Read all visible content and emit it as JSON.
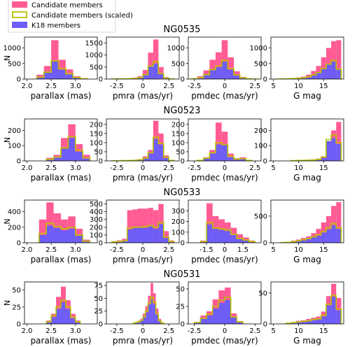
{
  "legend": {
    "placement": "top-left",
    "entries": [
      {
        "key": "candidates",
        "label": "Candidate members"
      },
      {
        "key": "scaled",
        "label": "Candidate members (scaled)"
      },
      {
        "key": "k18",
        "label": "K18 members"
      }
    ]
  },
  "colors": {
    "candidates": "#ff5b94",
    "scaled": "#b8c400",
    "k18": "#6e5df7"
  },
  "ylabel": "N",
  "columns": [
    {
      "key": "parallax",
      "xlabel": "parallax (mas)"
    },
    {
      "key": "pmra",
      "xlabel": "pmra (mas/yr)"
    },
    {
      "key": "pmdec",
      "xlabel": "pmdec (mas/yr)"
    },
    {
      "key": "gmag",
      "xlabel": "G mag"
    }
  ],
  "chart_data": [
    {
      "cluster": "NG0535",
      "type": "bar",
      "panels": [
        {
          "xlim": [
            1.95,
            3.45
          ],
          "xticks": [
            2.0,
            2.5,
            3.0
          ],
          "ylim": [
            0,
            1350
          ],
          "yticks": [
            0,
            500,
            1000
          ],
          "bin_edges": [
            2.2,
            2.35,
            2.5,
            2.65,
            2.8,
            2.95,
            3.1,
            3.25
          ],
          "candidates": [
            140,
            420,
            1250,
            620,
            310,
            90,
            20
          ],
          "scaled": [
            60,
            220,
            590,
            340,
            170,
            50,
            10
          ],
          "k18": [
            50,
            200,
            560,
            300,
            150,
            40,
            8
          ]
        },
        {
          "xlim": [
            -3.5,
            3.5
          ],
          "xticks": [
            -2.5,
            0.0,
            2.5
          ],
          "ylim": [
            0,
            1750
          ],
          "yticks": [
            0,
            500,
            1000,
            1500
          ],
          "bin_edges": [
            -3.0,
            -2.5,
            -2.0,
            -1.5,
            -1.0,
            -0.5,
            0.0,
            0.5,
            1.0,
            1.5,
            2.0,
            2.5,
            3.0
          ],
          "candidates": [
            10,
            15,
            20,
            30,
            60,
            120,
            380,
            1100,
            1650,
            500,
            80,
            20
          ],
          "scaled": [
            5,
            8,
            10,
            15,
            25,
            60,
            180,
            540,
            720,
            230,
            40,
            10
          ],
          "k18": [
            3,
            5,
            8,
            12,
            20,
            50,
            160,
            520,
            640,
            210,
            30,
            6
          ]
        },
        {
          "xlim": [
            -3.0,
            3.0
          ],
          "xticks": [
            -2.5,
            0.0,
            2.5
          ],
          "ylim": [
            0,
            1350
          ],
          "yticks": [
            0,
            500,
            1000
          ],
          "bin_edges": [
            -2.75,
            -2.25,
            -1.75,
            -1.25,
            -0.75,
            -0.25,
            0.25,
            0.75,
            1.25,
            1.75,
            2.25,
            2.75
          ],
          "candidates": [
            20,
            90,
            280,
            620,
            860,
            1250,
            700,
            250,
            70,
            20,
            5
          ],
          "scaled": [
            10,
            40,
            140,
            300,
            420,
            600,
            340,
            130,
            40,
            10,
            3
          ],
          "k18": [
            8,
            35,
            120,
            280,
            380,
            560,
            300,
            110,
            30,
            8,
            2
          ]
        },
        {
          "xlim": [
            4.5,
            19.0
          ],
          "xticks": [
            5,
            10,
            15
          ],
          "ylim": [
            0,
            1350
          ],
          "yticks": [
            0,
            500,
            1000
          ],
          "bin_edges": [
            5.5,
            6.5,
            7.5,
            8.5,
            9.5,
            10.5,
            11.5,
            12.5,
            13.5,
            14.5,
            15.5,
            16.5,
            17.5,
            18.5
          ],
          "candidates": [
            5,
            10,
            20,
            30,
            50,
            80,
            140,
            260,
            420,
            700,
            1000,
            1220,
            1250
          ],
          "scaled": [
            3,
            5,
            10,
            15,
            25,
            40,
            70,
            130,
            210,
            340,
            480,
            600,
            320
          ],
          "k18": [
            2,
            4,
            8,
            12,
            20,
            35,
            60,
            110,
            190,
            320,
            460,
            560,
            300
          ]
        }
      ]
    },
    {
      "cluster": "NG0523",
      "type": "bar",
      "panels": [
        {
          "xlim": [
            1.95,
            3.45
          ],
          "xticks": [
            2.0,
            2.5,
            3.0
          ],
          "ylim": [
            0,
            275
          ],
          "yticks": [
            0,
            100,
            200
          ],
          "bin_edges": [
            2.4,
            2.55,
            2.7,
            2.85,
            3.0,
            3.15,
            3.3
          ],
          "candidates": [
            20,
            40,
            150,
            240,
            110,
            40
          ],
          "scaled": [
            10,
            25,
            85,
            160,
            70,
            20
          ],
          "k18": [
            8,
            22,
            80,
            150,
            60,
            15
          ]
        },
        {
          "xlim": [
            -3.5,
            3.5
          ],
          "xticks": [
            -2.5,
            0.0,
            2.5
          ],
          "ylim": [
            0,
            230
          ],
          "yticks": [
            0,
            50,
            100,
            150,
            200
          ],
          "bin_edges": [
            -3.0,
            -2.5,
            -2.0,
            -1.5,
            -1.0,
            -0.5,
            0.0,
            0.5,
            1.0,
            1.5,
            2.0,
            2.5,
            3.0
          ],
          "candidates": [
            2,
            2,
            3,
            4,
            6,
            10,
            25,
            60,
            220,
            150,
            30,
            5
          ],
          "scaled": [
            1,
            1,
            2,
            2,
            3,
            6,
            15,
            45,
            130,
            95,
            20,
            3
          ],
          "k18": [
            0,
            1,
            1,
            2,
            3,
            5,
            12,
            40,
            120,
            90,
            15,
            2
          ]
        },
        {
          "xlim": [
            -3.0,
            3.0
          ],
          "xticks": [
            -2.5,
            0.0,
            2.5
          ],
          "ylim": [
            0,
            230
          ],
          "yticks": [
            0,
            50,
            100,
            150,
            200
          ],
          "bin_edges": [
            -2.25,
            -1.75,
            -1.25,
            -0.75,
            -0.25,
            0.25,
            0.75,
            1.25,
            1.75,
            2.25
          ],
          "candidates": [
            5,
            20,
            60,
            210,
            160,
            40,
            15,
            20,
            5
          ],
          "scaled": [
            3,
            15,
            45,
            100,
            90,
            25,
            10,
            12,
            3
          ],
          "k18": [
            2,
            12,
            40,
            90,
            85,
            20,
            8,
            10,
            2
          ]
        },
        {
          "xlim": [
            4.5,
            19.0
          ],
          "xticks": [
            5,
            10,
            15
          ],
          "ylim": [
            0,
            275
          ],
          "yticks": [
            0,
            100,
            200
          ],
          "bin_edges": [
            8.5,
            9.5,
            10.5,
            11.5,
            12.5,
            13.5,
            14.5,
            15.5,
            16.5,
            17.5,
            18.5
          ],
          "candidates": [
            3,
            5,
            6,
            8,
            10,
            15,
            30,
            60,
            200,
            255
          ],
          "scaled": [
            2,
            3,
            4,
            5,
            6,
            10,
            25,
            140,
            170,
            120
          ],
          "k18": [
            1,
            2,
            3,
            4,
            5,
            8,
            20,
            130,
            150,
            110
          ]
        }
      ]
    },
    {
      "cluster": "NG0533",
      "type": "bar",
      "panels": [
        {
          "xlim": [
            1.95,
            3.45
          ],
          "xticks": [
            2.0,
            2.5,
            3.0
          ],
          "ylim": [
            0,
            550
          ],
          "yticks": [
            0,
            200,
            400
          ],
          "bin_edges": [
            2.25,
            2.4,
            2.55,
            2.7,
            2.85,
            3.0,
            3.15,
            3.3
          ],
          "candidates": [
            300,
            520,
            380,
            300,
            340,
            180,
            40
          ],
          "scaled": [
            120,
            250,
            210,
            180,
            200,
            100,
            20
          ],
          "k18": [
            100,
            220,
            190,
            160,
            180,
            90,
            15
          ]
        },
        {
          "xlim": [
            -3.5,
            3.5
          ],
          "xticks": [
            -2.5,
            0.0,
            2.5
          ],
          "ylim": [
            0,
            550
          ],
          "yticks": [
            0,
            100,
            200,
            300,
            400,
            500
          ],
          "bin_edges": [
            -3.0,
            -2.5,
            -2.0,
            -1.5,
            -1.0,
            -0.5,
            0.0,
            0.5,
            1.0,
            1.5,
            2.0,
            2.5,
            3.0
          ],
          "candidates": [
            20,
            30,
            50,
            420,
            430,
            440,
            440,
            450,
            420,
            500,
            150,
            30
          ],
          "scaled": [
            10,
            15,
            25,
            190,
            200,
            200,
            210,
            220,
            200,
            260,
            70,
            15
          ],
          "k18": [
            8,
            12,
            20,
            170,
            190,
            200,
            190,
            210,
            180,
            240,
            60,
            10
          ]
        },
        {
          "xlim": [
            -3.0,
            3.0
          ],
          "xticks": [
            -1.5,
            0.0,
            1.5
          ],
          "ylim": [
            0,
            400
          ],
          "yticks": [
            0,
            100,
            200,
            300
          ],
          "bin_edges": [
            -2.0,
            -1.5,
            -1.0,
            -0.5,
            0.0,
            0.5,
            1.0,
            1.5,
            2.0,
            2.5
          ],
          "candidates": [
            20,
            370,
            250,
            220,
            190,
            140,
            80,
            50,
            20
          ],
          "scaled": [
            10,
            190,
            140,
            130,
            120,
            80,
            40,
            25,
            10
          ],
          "k18": [
            8,
            170,
            130,
            120,
            110,
            70,
            35,
            20,
            8
          ]
        },
        {
          "xlim": [
            4.5,
            19.0
          ],
          "xticks": [
            5,
            10,
            15
          ],
          "ylim": [
            0,
            800
          ],
          "yticks": [
            0,
            500
          ],
          "bin_edges": [
            6.5,
            7.5,
            8.5,
            9.5,
            10.5,
            11.5,
            12.5,
            13.5,
            14.5,
            15.5,
            16.5,
            17.5,
            18.5
          ],
          "candidates": [
            10,
            20,
            40,
            60,
            90,
            120,
            180,
            260,
            380,
            500,
            690,
            760
          ],
          "scaled": [
            5,
            10,
            20,
            35,
            55,
            80,
            110,
            150,
            210,
            280,
            360,
            280
          ],
          "k18": [
            4,
            8,
            15,
            30,
            50,
            70,
            100,
            130,
            190,
            250,
            330,
            260
          ]
        }
      ]
    },
    {
      "cluster": "NG0531",
      "type": "bar",
      "panels": [
        {
          "xlim": [
            1.95,
            3.45
          ],
          "xticks": [
            2.0,
            2.5,
            3.0
          ],
          "ylim": [
            0,
            62
          ],
          "yticks": [
            0,
            25,
            50
          ],
          "bin_edges": [
            2.4,
            2.5,
            2.6,
            2.7,
            2.8,
            2.9,
            3.0,
            3.1
          ],
          "candidates": [
            5,
            15,
            40,
            55,
            35,
            15,
            5
          ],
          "scaled": [
            3,
            12,
            25,
            35,
            25,
            10,
            3
          ],
          "k18": [
            3,
            10,
            22,
            32,
            22,
            8,
            2
          ]
        },
        {
          "xlim": [
            -3.5,
            3.5
          ],
          "xticks": [
            -2.5,
            0.0,
            2.5
          ],
          "ylim": [
            0,
            82
          ],
          "yticks": [
            0,
            25,
            50,
            75
          ],
          "bin_edges": [
            -1.0,
            -0.75,
            -0.5,
            -0.25,
            0.0,
            0.25,
            0.5,
            0.75,
            1.0,
            1.25,
            1.5,
            1.75,
            2.0
          ],
          "candidates": [
            2,
            4,
            6,
            10,
            20,
            35,
            55,
            80,
            60,
            30,
            10,
            3
          ],
          "scaled": [
            1,
            3,
            4,
            7,
            14,
            25,
            40,
            52,
            42,
            20,
            6,
            2
          ],
          "k18": [
            1,
            2,
            4,
            6,
            12,
            22,
            38,
            48,
            38,
            18,
            5,
            1
          ]
        },
        {
          "xlim": [
            -3.0,
            3.0
          ],
          "xticks": [
            -2.5,
            0.0,
            2.5
          ],
          "ylim": [
            0,
            60
          ],
          "yticks": [
            0,
            25,
            50
          ],
          "bin_edges": [
            -2.5,
            -2.0,
            -1.5,
            -1.0,
            -0.5,
            0.0,
            0.5,
            1.0,
            1.5
          ],
          "candidates": [
            3,
            12,
            18,
            35,
            48,
            52,
            15,
            4
          ],
          "scaled": [
            2,
            8,
            14,
            25,
            34,
            38,
            10,
            3
          ],
          "k18": [
            2,
            7,
            12,
            22,
            30,
            34,
            9,
            2
          ]
        },
        {
          "xlim": [
            4.5,
            19.0
          ],
          "xticks": [
            5,
            10,
            15
          ],
          "ylim": [
            0,
            68
          ],
          "yticks": [
            0,
            50
          ],
          "bin_edges": [
            7.5,
            8.5,
            9.5,
            10.5,
            11.5,
            12.5,
            13.5,
            14.5,
            15.5,
            16.5,
            17.5,
            18.5
          ],
          "candidates": [
            2,
            3,
            5,
            6,
            8,
            10,
            12,
            20,
            45,
            65,
            42
          ],
          "scaled": [
            1,
            2,
            3,
            4,
            5,
            7,
            8,
            14,
            32,
            46,
            24
          ],
          "k18": [
            1,
            2,
            3,
            4,
            5,
            6,
            8,
            12,
            30,
            44,
            22
          ]
        }
      ]
    }
  ]
}
